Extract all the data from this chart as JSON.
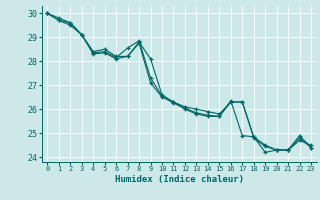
{
  "xlabel": "Humidex (Indice chaleur)",
  "background_color": "#cce8e8",
  "grid_color": "#ffffff",
  "line_color": "#006666",
  "xlim": [
    -0.5,
    23.5
  ],
  "ylim": [
    23.8,
    30.3
  ],
  "xticks": [
    0,
    1,
    2,
    3,
    4,
    5,
    6,
    7,
    8,
    9,
    10,
    11,
    12,
    13,
    14,
    15,
    16,
    17,
    18,
    19,
    20,
    21,
    22,
    23
  ],
  "yticks": [
    24,
    25,
    26,
    27,
    28,
    29,
    30
  ],
  "series": [
    [
      30.0,
      29.7,
      29.6,
      29.1,
      28.4,
      28.5,
      28.2,
      28.2,
      28.8,
      28.1,
      26.6,
      26.3,
      26.1,
      26.0,
      25.9,
      25.8,
      26.3,
      26.3,
      24.85,
      24.2,
      24.3,
      24.3,
      24.7,
      24.5
    ],
    [
      30.0,
      29.7,
      29.5,
      29.1,
      28.35,
      28.4,
      28.15,
      28.55,
      28.85,
      27.3,
      26.55,
      26.25,
      26.05,
      25.85,
      25.75,
      25.7,
      26.35,
      24.9,
      24.85,
      24.5,
      24.3,
      24.3,
      24.9,
      24.4
    ],
    [
      30.0,
      29.8,
      29.6,
      29.1,
      28.3,
      28.35,
      28.1,
      28.2,
      28.75,
      27.1,
      26.5,
      26.3,
      26.0,
      25.8,
      25.7,
      25.7,
      26.3,
      26.3,
      24.8,
      24.45,
      24.3,
      24.3,
      24.8,
      24.4
    ]
  ]
}
